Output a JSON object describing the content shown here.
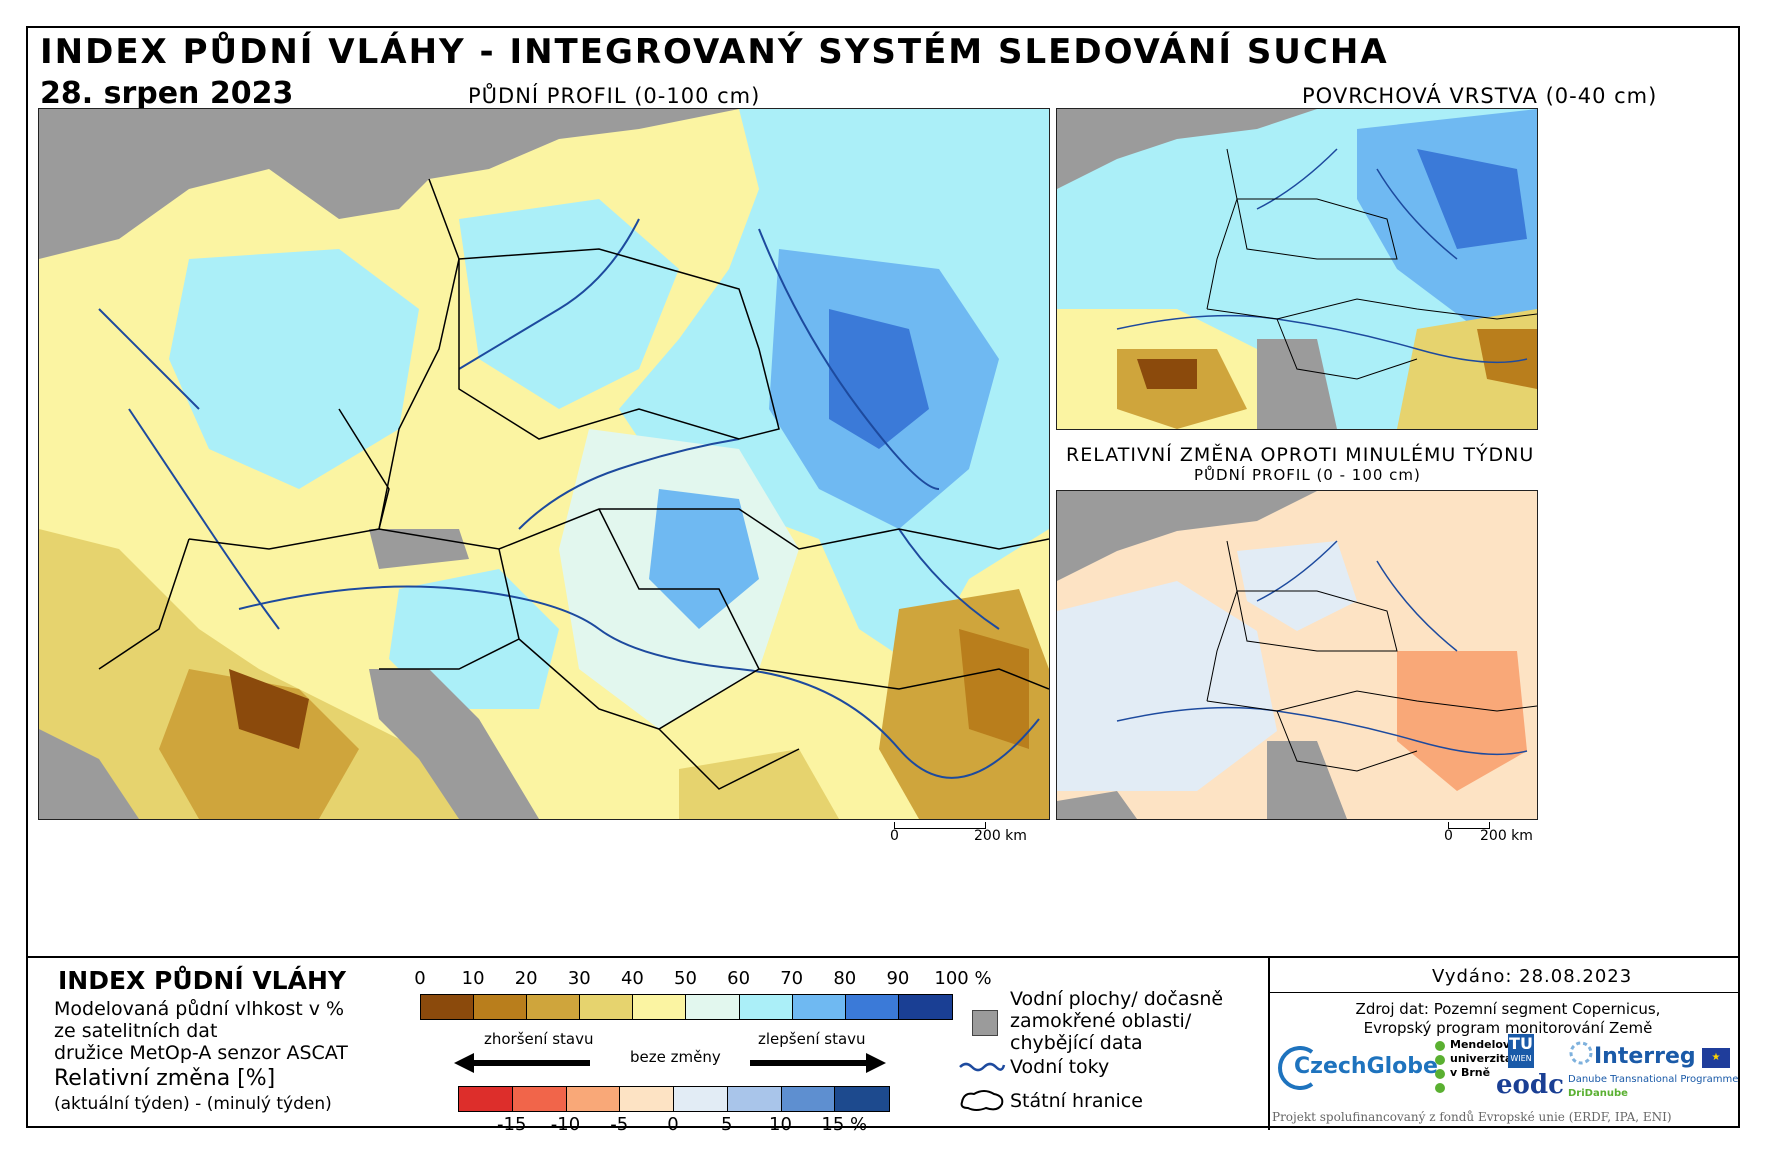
{
  "header": {
    "title": "INDEX PŮDNÍ VLÁHY - INTEGROVANÝ SYSTÉM SLEDOVÁNÍ SUCHA",
    "date": "28. srpen 2023"
  },
  "maps": {
    "main_title": "PŮDNÍ PROFIL (0-100 cm)",
    "surface_title": "POVRCHOVÁ VRSTVA (0-40 cm)",
    "change_title": "RELATIVNÍ ZMĚNA OPROTI MINULÉMU TÝDNU",
    "change_subtitle": "PŮDNÍ PROFIL (0 - 100 cm)",
    "main_scale": {
      "zero": "0",
      "dist": "200 km"
    },
    "small_scale": {
      "zero": "0",
      "dist": "200 km"
    }
  },
  "legend": {
    "title": "INDEX PŮDNÍ VLÁHY",
    "line1": "Modelovaná půdní vlhkost v %",
    "line2": "ze satelitních dat",
    "line3": "družice MetOp-A senzor ASCAT",
    "rel_title": "Relativní změna [%]",
    "rel_sub": "(aktuální týden) - (minulý týden)",
    "sm_ticks": [
      "0",
      "10",
      "20",
      "30",
      "40",
      "50",
      "60",
      "70",
      "80",
      "90",
      "100 %"
    ],
    "sm_colors": [
      "#8b4a0c",
      "#b97e1c",
      "#cfa53c",
      "#e6d36e",
      "#fbf4a2",
      "#e2f7ee",
      "#abeff8",
      "#6fb9f2",
      "#3b7ad8",
      "#1a3f94"
    ],
    "worse_label": "zhoršení stavu",
    "same_label": "beze změny",
    "better_label": "zlepšení stavu",
    "change_ticks": [
      "-15",
      "-10",
      "-5",
      "0",
      "5",
      "10",
      "15 %"
    ],
    "change_colors": [
      "#dd2e2b",
      "#f1654a",
      "#f9a878",
      "#fde3c4",
      "#e2ecf5",
      "#a9c5ea",
      "#5e8fd0",
      "#1d4a8e"
    ],
    "key_water": "Vodní plochy/ dočasně",
    "key_water2": "zamokřené oblasti/",
    "key_water3": "chybějící data",
    "key_rivers": "Vodní toky",
    "key_borders": "Státní hranice",
    "missing_color": "#9b9b9b",
    "river_color": "#1d4a9e"
  },
  "credits": {
    "issued": "Vydáno: 28.08.2023",
    "source1": "Zdroj dat: Pozemní segment Copernicus,",
    "source2": "Evropský program monitorování Země",
    "czechglobe": "CzechGlobe",
    "mendel1": "Mendelova",
    "mendel2": "univerzita",
    "mendel3": "v Brně",
    "tu": "TU",
    "tu_sub": "WIEN",
    "eodc": "eodc",
    "interreg": "Interreg",
    "interreg_sub1": "Danube Transnational Programme",
    "interreg_sub2": "DriDanube",
    "funding": "Projekt spolufinancovaný z fondů Evropské unie (ERDF, IPA, ENI)"
  }
}
